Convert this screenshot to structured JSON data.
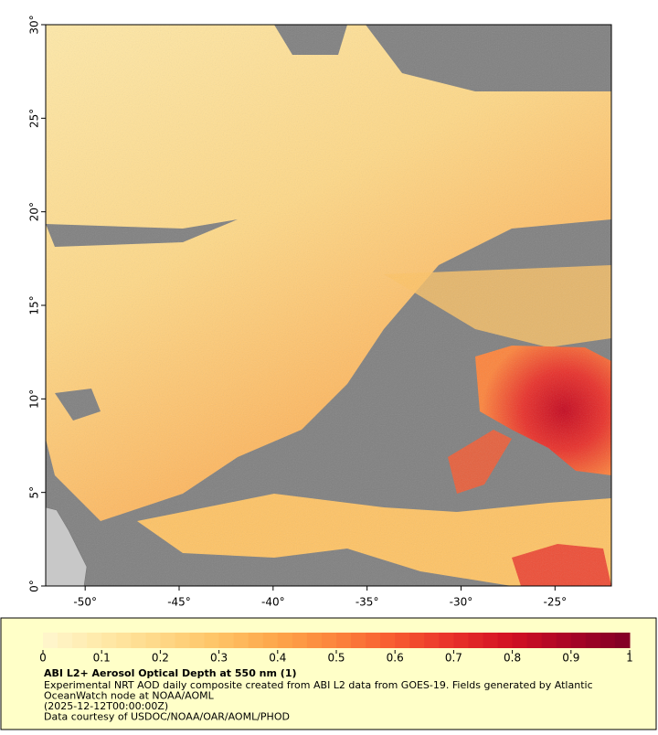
{
  "chart_data": {
    "type": "map",
    "title": "ABI L2+ Aerosol Optical Depth at 550 nm (1)",
    "notes": [
      "Experimental NRT AOD daily composite created from ABI L2 data from GOES-19. Fields generated by Atlantic",
      "OceanWatch node at NOAA/AOML",
      "(2025-12-12T00:00:00Z)",
      "Data courtesy of USDOC/NOAA/OAR/AOML/PHOD"
    ],
    "xlim": [
      -52.1,
      -22
    ],
    "ylim": [
      0,
      30
    ],
    "xticks": [
      {
        "value": -50,
        "label": "-50°"
      },
      {
        "value": -45,
        "label": "-45°"
      },
      {
        "value": -40,
        "label": "-40°"
      },
      {
        "value": -35,
        "label": "-35°"
      },
      {
        "value": -30,
        "label": "-30°"
      },
      {
        "value": -25,
        "label": "-25°"
      }
    ],
    "yticks": [
      {
        "value": 0,
        "label": "0°"
      },
      {
        "value": 5,
        "label": "5°"
      },
      {
        "value": 10,
        "label": "10°"
      },
      {
        "value": 15,
        "label": "15°"
      },
      {
        "value": 20,
        "label": "20°"
      },
      {
        "value": 25,
        "label": "25°"
      },
      {
        "value": 30,
        "label": "30°"
      }
    ],
    "colorbar": {
      "clim": [
        0,
        1
      ],
      "ticks": [
        0,
        0.1,
        0.2,
        0.3,
        0.4,
        0.5,
        0.6,
        0.7,
        0.8,
        0.9,
        1
      ],
      "colors": [
        "#fff7cf",
        "#ffe9a8",
        "#fed887",
        "#fec365",
        "#fda54a",
        "#fc843c",
        "#f75a31",
        "#e8302a",
        "#d10f22",
        "#a80326",
        "#800026"
      ]
    }
  }
}
